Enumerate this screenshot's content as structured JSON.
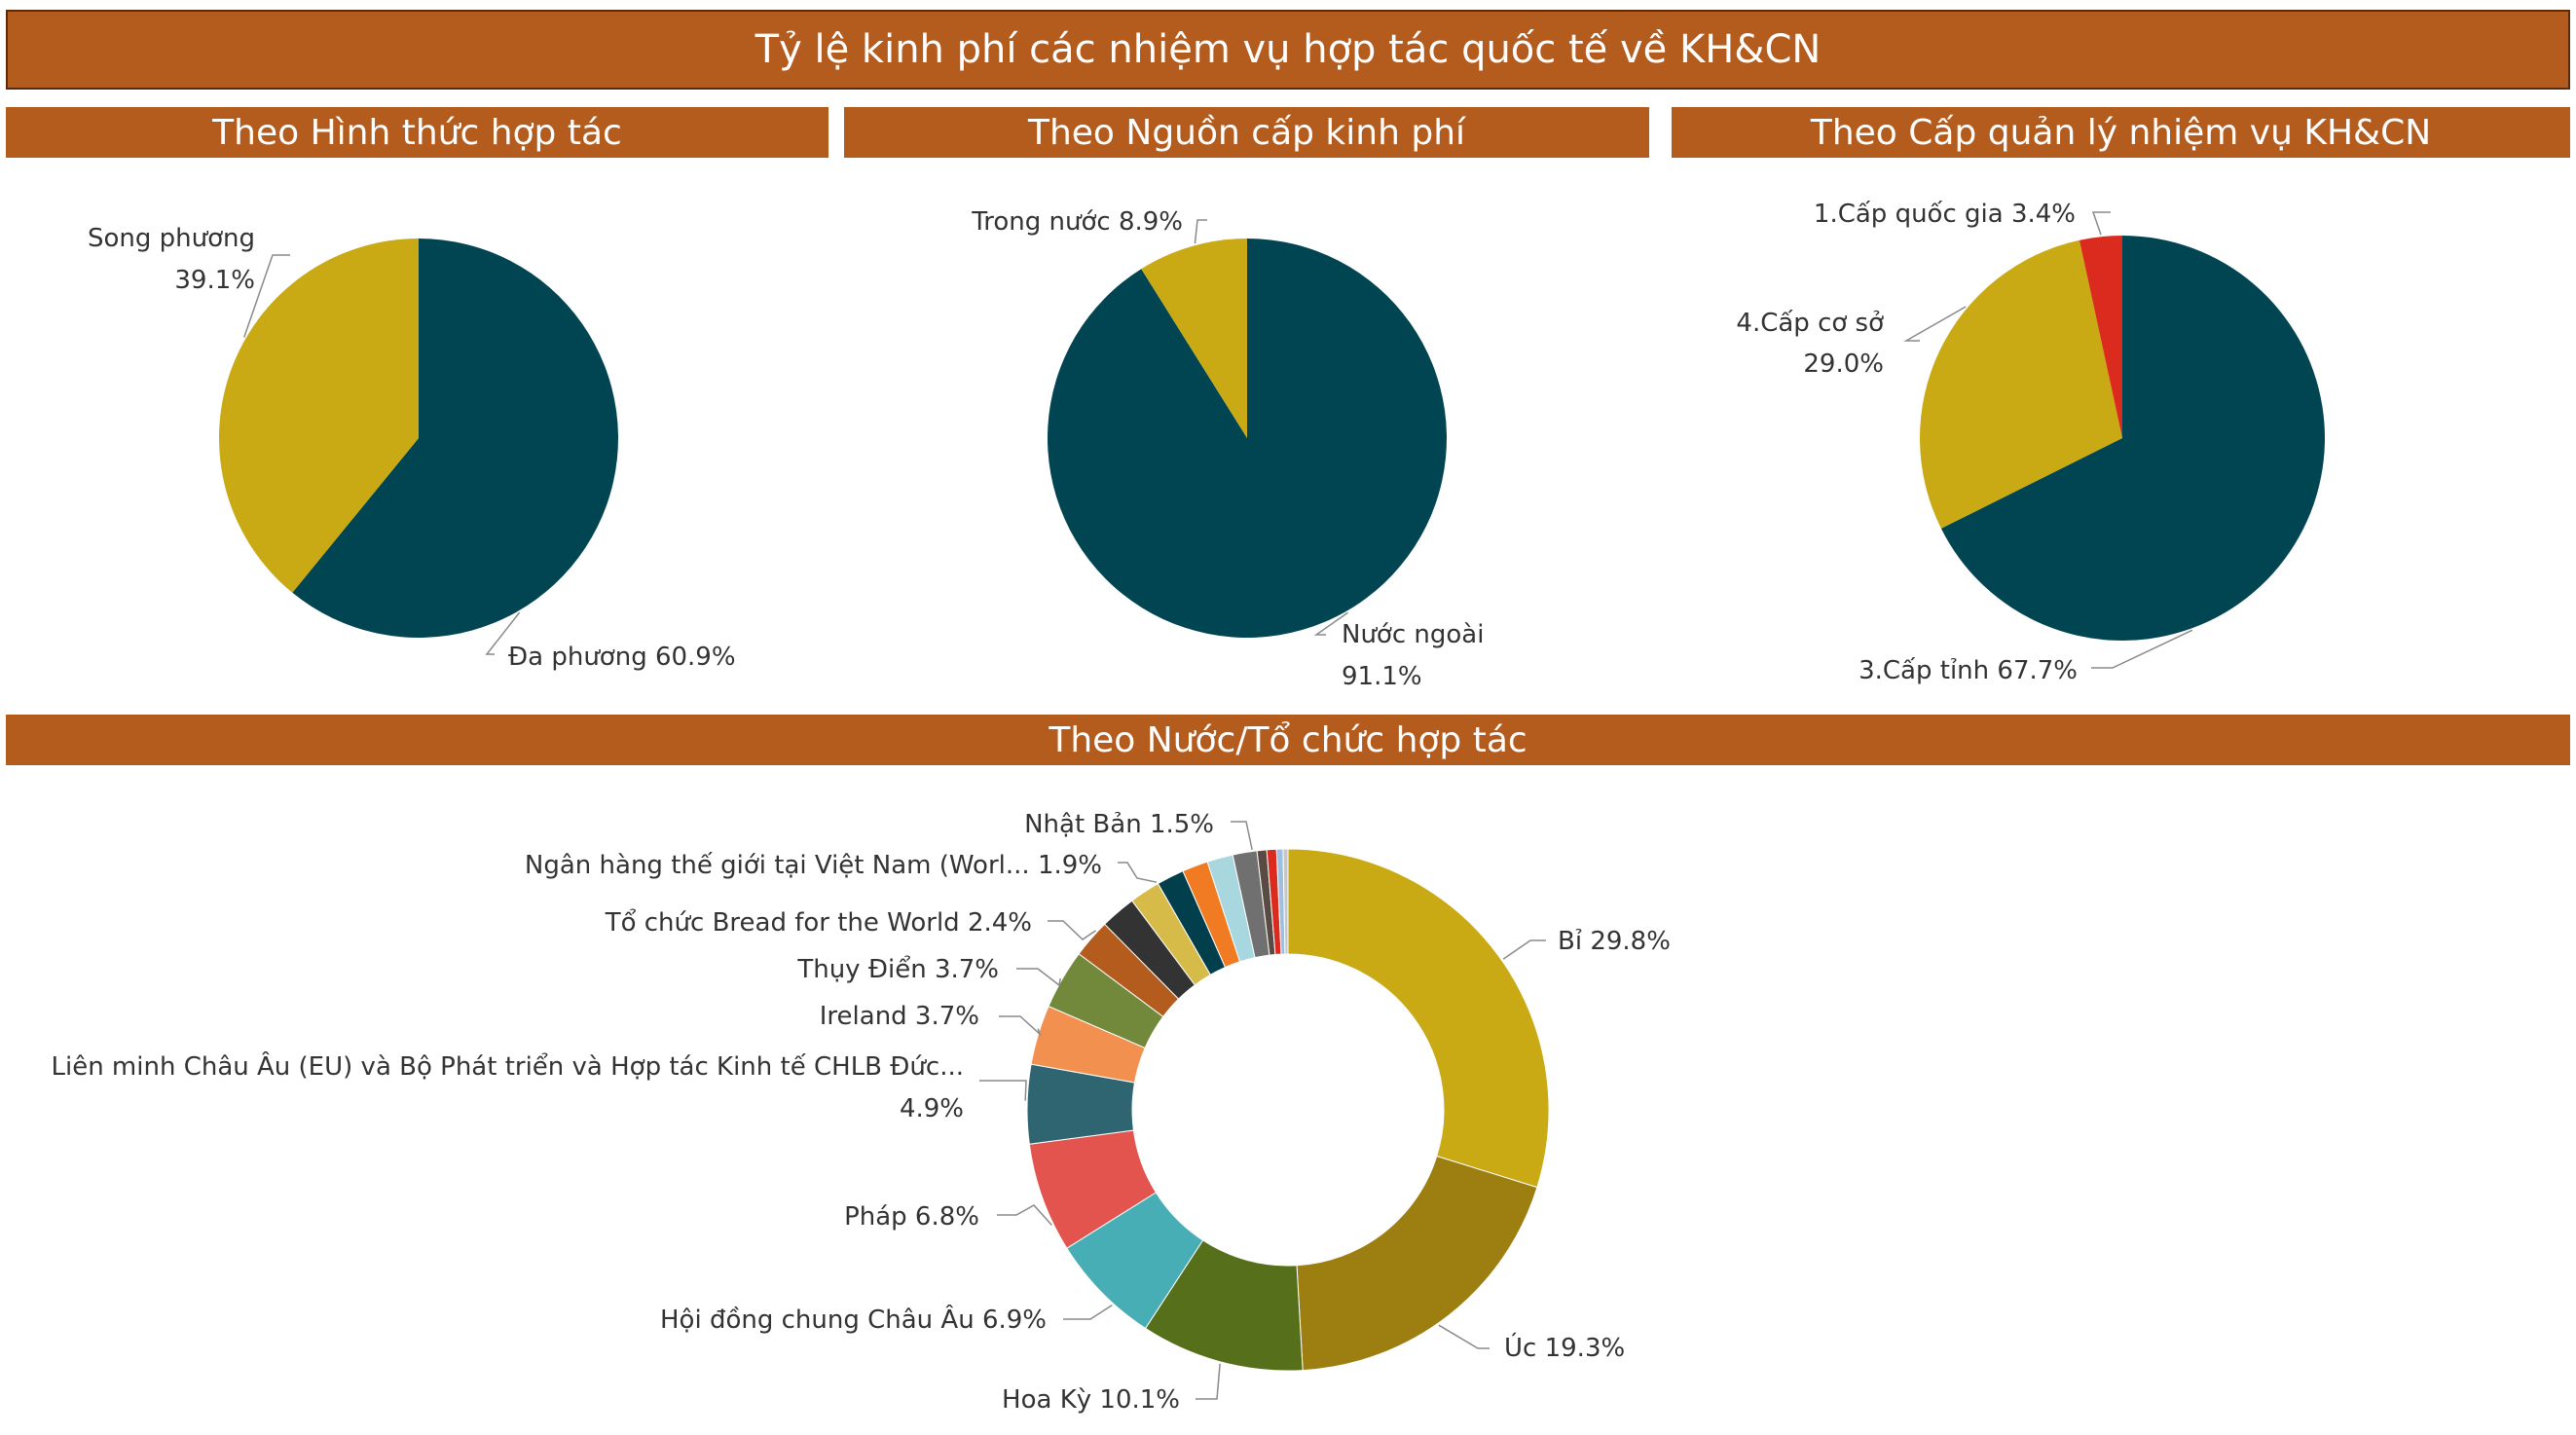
{
  "title": "Tỷ lệ kinh phí các nhiệm vụ hợp tác quốc tế về KH&CN",
  "sections": {
    "form": "Theo Hình thức hợp tác",
    "source": "Theo Nguồn cấp kinh phí",
    "level": "Theo Cấp quản lý nhiệm vụ KH&CN",
    "country": "Theo Nước/Tổ chức hợp tác"
  },
  "chart_data": [
    {
      "type": "pie",
      "title": "Theo Hình thức hợp tác",
      "slices": [
        {
          "label": "Đa phương",
          "value": 60.9,
          "display": "60.9%",
          "color": "#024552"
        },
        {
          "label": "Song phương",
          "value": 39.1,
          "display": "39.1%",
          "color": "#C9A914"
        }
      ]
    },
    {
      "type": "pie",
      "title": "Theo Nguồn cấp kinh phí",
      "slices": [
        {
          "label": "Nước ngoài",
          "value": 91.1,
          "display": "91.1%",
          "color": "#024552"
        },
        {
          "label": "Trong nước",
          "value": 8.9,
          "display": "8.9%",
          "color": "#C9A914"
        }
      ]
    },
    {
      "type": "pie",
      "title": "Theo Cấp quản lý nhiệm vụ KH&CN",
      "slices": [
        {
          "label": "3.Cấp tỉnh",
          "value": 67.7,
          "display": "67.7%",
          "color": "#024552"
        },
        {
          "label": "4.Cấp cơ sở",
          "value": 29.0,
          "display": "29.0%",
          "color": "#C9A914"
        },
        {
          "label": "1.Cấp quốc gia",
          "value": 3.4,
          "display": "3.4%",
          "color": "#DB2B1F"
        }
      ]
    },
    {
      "type": "pie",
      "style": "donut",
      "title": "Theo Nước/Tổ chức hợp tác",
      "slices": [
        {
          "label": "Bỉ",
          "value": 29.8,
          "display": "29.8%",
          "color": "#C9A914"
        },
        {
          "label": "Úc",
          "value": 19.3,
          "display": "19.3%",
          "color": "#9C7F10"
        },
        {
          "label": "Hoa Kỳ",
          "value": 10.1,
          "display": "10.1%",
          "color": "#556F1A"
        },
        {
          "label": "Hội đồng chung Châu Âu",
          "value": 6.9,
          "display": "6.9%",
          "color": "#47AEB5"
        },
        {
          "label": "Pháp",
          "value": 6.8,
          "display": "6.8%",
          "color": "#E3544F"
        },
        {
          "label": "Liên minh Châu Âu (EU) và Bộ Phát triển và Hợp tác Kinh tế CHLB Đức...",
          "value": 4.9,
          "display": "4.9%",
          "color": "#2F6570"
        },
        {
          "label": "Ireland",
          "value": 3.7,
          "display": "3.7%",
          "color": "#F2904F"
        },
        {
          "label": "Thụy Điển",
          "value": 3.7,
          "display": "3.7%",
          "color": "#72893C"
        },
        {
          "label": "Tổ chức Bread for the World",
          "value": 2.4,
          "display": "2.4%",
          "color": "#B45B1E"
        },
        {
          "label": "",
          "value": 2.2,
          "display": "",
          "color": "#333333"
        },
        {
          "label": "Ngân hàng thế giới tại Việt Nam (Worl...",
          "value": 1.9,
          "display": "1.9%",
          "color": "#D7BB48"
        },
        {
          "label": "",
          "value": 1.7,
          "display": "",
          "color": "#013F4C"
        },
        {
          "label": "",
          "value": 1.6,
          "display": "",
          "color": "#F07B22"
        },
        {
          "label": "",
          "value": 1.6,
          "display": "",
          "color": "#A9D7DF"
        },
        {
          "label": "Nhật Bản",
          "value": 1.5,
          "display": "1.5%",
          "color": "#707070"
        },
        {
          "label": "",
          "value": 0.6,
          "display": "",
          "color": "#5A4A44"
        },
        {
          "label": "",
          "value": 0.6,
          "display": "",
          "color": "#DB2B1F"
        },
        {
          "label": "",
          "value": 0.4,
          "display": "",
          "color": "#9FBFE0"
        },
        {
          "label": "",
          "value": 0.3,
          "display": "",
          "color": "#C6C6C6"
        }
      ]
    }
  ]
}
